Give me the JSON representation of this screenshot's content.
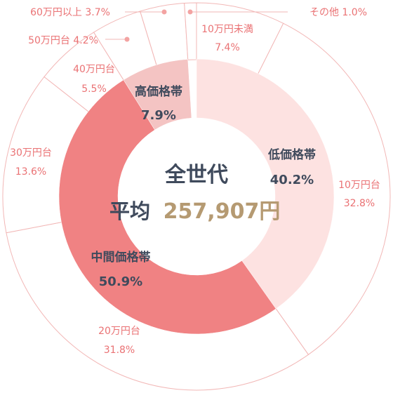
{
  "chart_data": {
    "type": "pie",
    "center_title": "全世代",
    "average_label": "平均",
    "average_value": "257,907円",
    "colors": {
      "inner_low": "#fde2e1",
      "inner_mid": "#f08283",
      "inner_high": "#f4c4c3",
      "outer_stroke": "#f2b7b6",
      "outer_label": "#ea7274",
      "inner_label": "#3f4a5c",
      "average_value_color": "#b59a72",
      "dot": "#f3a3a2"
    },
    "inner_series": [
      {
        "name": "低価格帯",
        "value": "40.2%",
        "pct": 40.2
      },
      {
        "name": "中間価格帯",
        "value": "50.9%",
        "pct": 50.9
      },
      {
        "name": "高価格帯",
        "value": "7.9%",
        "pct": 7.9
      }
    ],
    "outer_series": [
      {
        "name": "10万円未満",
        "value": "7.4%",
        "pct": 7.4
      },
      {
        "name": "10万円台",
        "value": "32.8%",
        "pct": 32.8
      },
      {
        "name": "20万円台",
        "value": "31.8%",
        "pct": 31.8
      },
      {
        "name": "30万円台",
        "value": "13.6%",
        "pct": 13.6
      },
      {
        "name": "40万円台",
        "value": "5.5%",
        "pct": 5.5
      },
      {
        "name": "50万円台",
        "value": "4.2%",
        "pct": 4.2
      },
      {
        "name": "60万円以上",
        "value": "3.7%",
        "pct": 3.7
      },
      {
        "name": "その他",
        "value": "1.0%",
        "pct": 1.0
      }
    ]
  }
}
